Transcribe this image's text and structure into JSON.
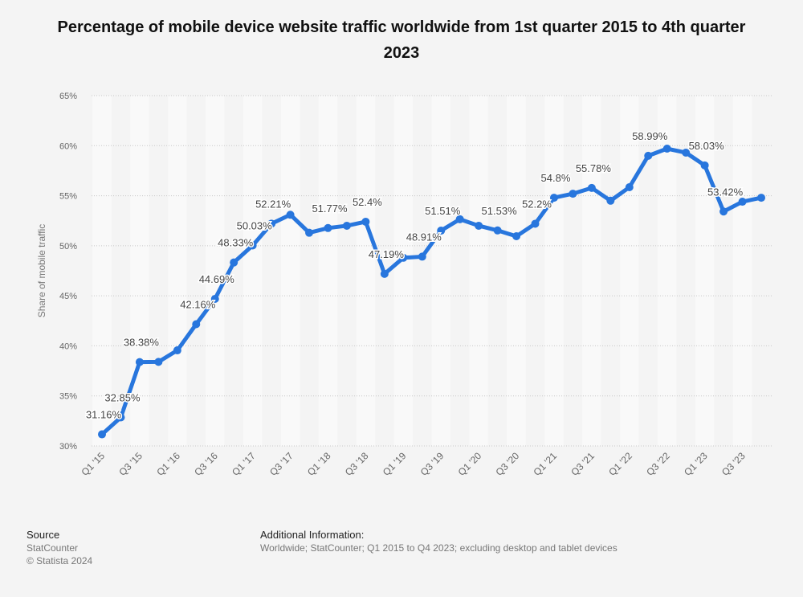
{
  "title": "Percentage of mobile device website traffic worldwide from 1st quarter 2015 to 4th quarter 2023",
  "chart_data": {
    "type": "line",
    "title": "Percentage of mobile device website traffic worldwide from 1st quarter 2015 to 4th quarter 2023",
    "xlabel": "",
    "ylabel": "Share of mobile traffic",
    "ylim": [
      30,
      65
    ],
    "yticks": [
      "30%",
      "35%",
      "40%",
      "45%",
      "50%",
      "55%",
      "60%",
      "65%"
    ],
    "grid": true,
    "color": "#2876dd",
    "x": [
      "Q1 '15",
      "Q2 '15",
      "Q3 '15",
      "Q4 '15",
      "Q1 '16",
      "Q2 '16",
      "Q3 '16",
      "Q4 '16",
      "Q1 '17",
      "Q2 '17",
      "Q3 '17",
      "Q4 '17",
      "Q1 '18",
      "Q2 '18",
      "Q3 '18",
      "Q4 '18",
      "Q1 '19",
      "Q2 '19",
      "Q3 '19",
      "Q4 '19",
      "Q1 '20",
      "Q2 '20",
      "Q3 '20",
      "Q4 '20",
      "Q1 '21",
      "Q2 '21",
      "Q3 '21",
      "Q4 '21",
      "Q1 '22",
      "Q2 '22",
      "Q3 '22",
      "Q4 '22",
      "Q1 '23",
      "Q2 '23",
      "Q3 '23",
      "Q4 '23"
    ],
    "xtick_labels": [
      "Q1 '15",
      "Q3 '15",
      "Q1 '16",
      "Q3 '16",
      "Q1 '17",
      "Q3 '17",
      "Q1 '18",
      "Q3 '18",
      "Q1 '19",
      "Q3 '19",
      "Q1 '20",
      "Q3 '20",
      "Q1 '21",
      "Q3 '21",
      "Q1 '22",
      "Q3 '22",
      "Q1 '23",
      "Q3 '23"
    ],
    "values": [
      31.16,
      32.85,
      38.38,
      38.4,
      39.55,
      42.16,
      44.69,
      48.33,
      50.03,
      52.21,
      53.1,
      51.3,
      51.77,
      52.0,
      52.4,
      47.19,
      48.8,
      48.91,
      51.51,
      52.65,
      52.0,
      51.53,
      50.95,
      52.2,
      54.8,
      55.2,
      55.78,
      54.5,
      55.85,
      58.99,
      59.7,
      59.3,
      58.03,
      53.42,
      54.4,
      54.8
    ],
    "data_labels": [
      "31.16%",
      "32.85%",
      "38.38%",
      null,
      null,
      "42.16%",
      "44.69%",
      "48.33%",
      "50.03%",
      "52.21%",
      null,
      null,
      "51.77%",
      null,
      "52.4%",
      "47.19%",
      null,
      "48.91%",
      "51.51%",
      null,
      null,
      "51.53%",
      null,
      "52.2%",
      "54.8%",
      null,
      "55.78%",
      null,
      null,
      "58.99%",
      null,
      null,
      "58.03%",
      "53.42%",
      null,
      null
    ]
  },
  "footer": {
    "source_heading": "Source",
    "source_name": "StatCounter",
    "copyright": "© Statista 2024",
    "info_heading": "Additional Information:",
    "info_text": "Worldwide; StatCounter; Q1 2015 to Q4 2023; excluding desktop and tablet devices"
  }
}
